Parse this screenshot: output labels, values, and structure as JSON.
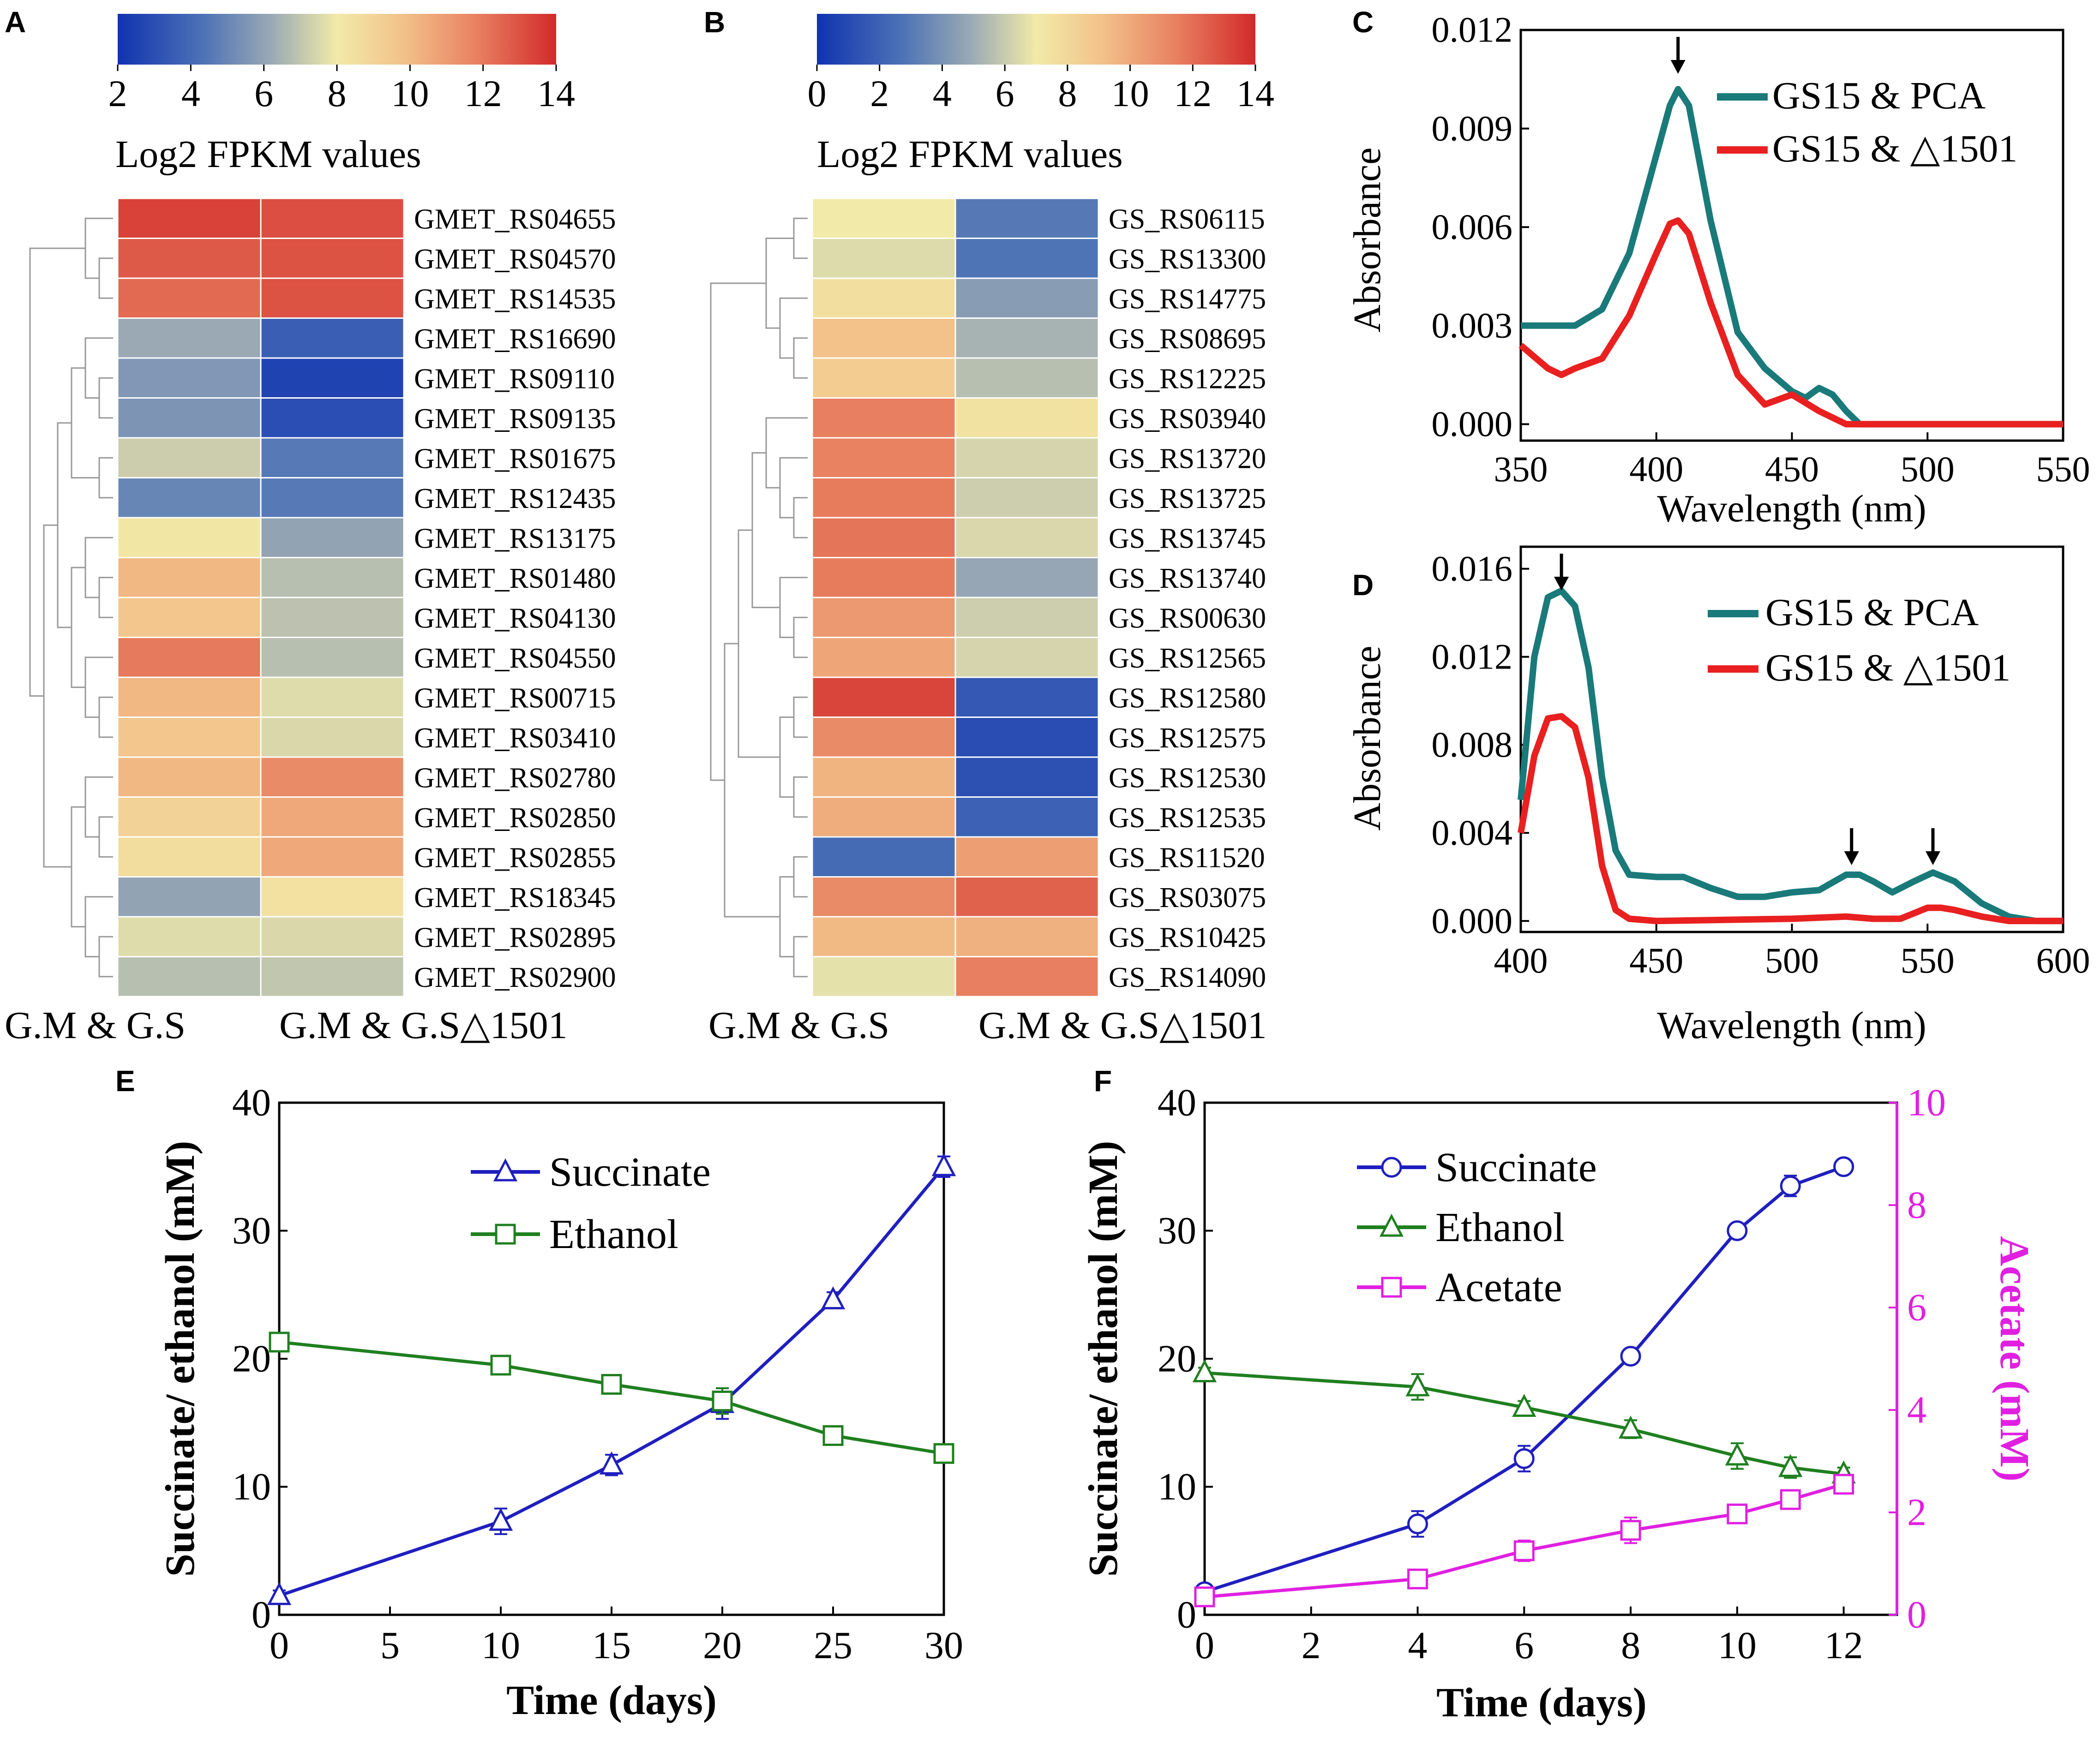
{
  "figure": {
    "panels": [
      "A",
      "B",
      "C",
      "D",
      "E",
      "F"
    ]
  },
  "chart_data": [
    {
      "panel": "A",
      "type": "heatmap",
      "colorbar": {
        "label": "Log2 FPKM values",
        "ticks": [
          2,
          4,
          6,
          8,
          10,
          12,
          14
        ],
        "range": [
          2,
          14
        ]
      },
      "columns": [
        "G.M & G.S",
        "G.M & G.S△1501"
      ],
      "rows": [
        "GMET_RS04655",
        "GMET_RS04570",
        "GMET_RS14535",
        "GMET_RS16690",
        "GMET_RS09110",
        "GMET_RS09135",
        "GMET_RS01675",
        "GMET_RS12435",
        "GMET_RS13175",
        "GMET_RS01480",
        "GMET_RS04130",
        "GMET_RS04550",
        "GMET_RS00715",
        "GMET_RS03410",
        "GMET_RS02780",
        "GMET_RS02850",
        "GMET_RS02855",
        "GMET_RS18345",
        "GMET_RS02895",
        "GMET_RS02900"
      ],
      "values": [
        [
          13.4,
          13.1
        ],
        [
          12.8,
          13.0
        ],
        [
          12.4,
          13.0
        ],
        [
          6.2,
          3.6
        ],
        [
          5.6,
          2.6
        ],
        [
          5.5,
          3.0
        ],
        [
          7.2,
          4.6
        ],
        [
          5.0,
          4.6
        ],
        [
          8.2,
          6.0
        ],
        [
          10.1,
          6.8
        ],
        [
          9.6,
          6.9
        ],
        [
          12.0,
          6.8
        ],
        [
          10.1,
          7.6
        ],
        [
          9.6,
          7.5
        ],
        [
          10.1,
          11.5
        ],
        [
          9.1,
          10.6
        ],
        [
          8.6,
          10.6
        ],
        [
          6.0,
          8.4
        ],
        [
          7.6,
          7.5
        ],
        [
          6.8,
          7.0
        ]
      ],
      "legend": {
        "position": "top"
      }
    },
    {
      "panel": "B",
      "type": "heatmap",
      "colorbar": {
        "label": "Log2 FPKM values",
        "ticks": [
          0,
          2,
          4,
          6,
          8,
          10,
          12,
          14
        ],
        "range": [
          0,
          14
        ]
      },
      "columns": [
        "G.M & G.S",
        "G.M & G.S△1501"
      ],
      "rows": [
        "GS_RS06115",
        "GS_RS13300",
        "GS_RS14775",
        "GS_RS08695",
        "GS_RS12225",
        "GS_RS03940",
        "GS_RS13720",
        "GS_RS13725",
        "GS_RS13745",
        "GS_RS13740",
        "GS_RS00630",
        "GS_RS12565",
        "GS_RS12580",
        "GS_RS12575",
        "GS_RS12530",
        "GS_RS12535",
        "GS_RS11520",
        "GS_RS03075",
        "GS_RS10425",
        "GS_RS14090"
      ],
      "values": [
        [
          7.0,
          3.0
        ],
        [
          6.5,
          2.8
        ],
        [
          7.6,
          4.4
        ],
        [
          9.1,
          5.2
        ],
        [
          8.6,
          5.6
        ],
        [
          11.5,
          7.4
        ],
        [
          11.4,
          6.3
        ],
        [
          11.6,
          6.1
        ],
        [
          11.8,
          6.4
        ],
        [
          11.6,
          4.8
        ],
        [
          10.6,
          6.1
        ],
        [
          10.1,
          6.3
        ],
        [
          13.2,
          1.6
        ],
        [
          11.1,
          1.1
        ],
        [
          9.6,
          1.3
        ],
        [
          9.9,
          2.0
        ],
        [
          2.4,
          10.4
        ],
        [
          11.1,
          12.4
        ],
        [
          9.4,
          9.7
        ],
        [
          6.7,
          11.5
        ]
      ],
      "legend": {
        "position": "top"
      }
    },
    {
      "panel": "C",
      "type": "line",
      "xlabel": "Wavelength (nm)",
      "ylabel": "Absorbance",
      "xlim": [
        350,
        550
      ],
      "ylim": [
        -0.0005,
        0.012
      ],
      "xticks": [
        350,
        400,
        450,
        500,
        550
      ],
      "yticks": [
        "0.000",
        "0.003",
        "0.006",
        "0.009",
        "0.012"
      ],
      "grid": false,
      "legend": {
        "position": "top-right"
      },
      "series": [
        {
          "name": "GS15 & PCA",
          "color": "#1a7a7a",
          "x": [
            350,
            360,
            370,
            380,
            390,
            400,
            405,
            408,
            412,
            420,
            430,
            440,
            450,
            455,
            460,
            465,
            470,
            475,
            500,
            550
          ],
          "y": [
            0.003,
            0.003,
            0.003,
            0.0035,
            0.0052,
            0.0082,
            0.0097,
            0.0102,
            0.0097,
            0.0062,
            0.0028,
            0.0017,
            0.001,
            0.0008,
            0.0011,
            0.0009,
            0.0004,
            0.0,
            0.0,
            0.0
          ]
        },
        {
          "name": "GS15 & △1501",
          "color": "#e82020",
          "x": [
            350,
            360,
            365,
            370,
            380,
            390,
            400,
            405,
            408,
            412,
            420,
            430,
            440,
            450,
            460,
            470,
            475,
            500,
            550
          ],
          "y": [
            0.0024,
            0.0017,
            0.0015,
            0.0017,
            0.002,
            0.0033,
            0.0052,
            0.0061,
            0.0062,
            0.0058,
            0.0037,
            0.0015,
            0.0006,
            0.0009,
            0.0004,
            0.0,
            0.0,
            0.0,
            0.0
          ]
        }
      ],
      "annotations": [
        {
          "type": "arrow",
          "x": 408
        }
      ]
    },
    {
      "panel": "D",
      "type": "line",
      "xlabel": "Wavelength (nm)",
      "ylabel": "Absorbance",
      "xlim": [
        400,
        600
      ],
      "ylim": [
        -0.0005,
        0.017
      ],
      "xticks": [
        400,
        450,
        500,
        550,
        600
      ],
      "yticks": [
        "0.000",
        "0.004",
        "0.008",
        "0.012",
        "0.016"
      ],
      "grid": false,
      "legend": {
        "position": "top-right"
      },
      "series": [
        {
          "name": "GS15 & PCA",
          "color": "#1a7a7a",
          "x": [
            400,
            405,
            410,
            415,
            420,
            425,
            430,
            435,
            440,
            450,
            460,
            470,
            480,
            490,
            500,
            510,
            520,
            525,
            530,
            537,
            545,
            552,
            560,
            570,
            580,
            590,
            600
          ],
          "y": [
            0.0055,
            0.012,
            0.0147,
            0.015,
            0.0143,
            0.0115,
            0.0065,
            0.0032,
            0.0021,
            0.002,
            0.002,
            0.0015,
            0.0011,
            0.0011,
            0.0013,
            0.0014,
            0.0021,
            0.0021,
            0.0018,
            0.0013,
            0.0018,
            0.0022,
            0.0018,
            0.0008,
            0.0002,
            0.0,
            0.0
          ]
        },
        {
          "name": "GS15 & △1501",
          "color": "#e82020",
          "x": [
            400,
            405,
            410,
            415,
            420,
            425,
            430,
            435,
            440,
            450,
            500,
            520,
            530,
            540,
            550,
            555,
            560,
            570,
            580,
            600
          ],
          "y": [
            0.004,
            0.0075,
            0.0092,
            0.0093,
            0.0088,
            0.0065,
            0.0025,
            0.0005,
            0.0001,
            0.0,
            0.0001,
            0.0002,
            0.0001,
            0.0001,
            0.0006,
            0.0006,
            0.0005,
            0.0002,
            0.0,
            0.0
          ]
        }
      ],
      "annotations": [
        {
          "type": "arrow",
          "x": 415
        },
        {
          "type": "arrow",
          "x": 522
        },
        {
          "type": "arrow",
          "x": 552
        }
      ]
    },
    {
      "panel": "E",
      "type": "line",
      "xlabel": "Time (days)",
      "ylabel": "Succinate/ ethanol (mM)",
      "xlim": [
        0,
        30
      ],
      "ylim": [
        0,
        40
      ],
      "xticks": [
        0,
        5,
        10,
        15,
        20,
        25,
        30
      ],
      "yticks": [
        0,
        10,
        20,
        30,
        40
      ],
      "grid": false,
      "legend": {
        "position": "top-center"
      },
      "series": [
        {
          "name": "Succinate",
          "color": "#1f1fbf",
          "marker": "triangle",
          "x": [
            0,
            10,
            15,
            20,
            25,
            30
          ],
          "y": [
            1.5,
            7.3,
            11.7,
            16.5,
            24.6,
            35.0
          ],
          "err": [
            0.4,
            1.0,
            0.8,
            1.2,
            0.6,
            0.8
          ]
        },
        {
          "name": "Ethanol",
          "color": "#1f7f1f",
          "marker": "square",
          "x": [
            0,
            10,
            15,
            20,
            25,
            30
          ],
          "y": [
            21.3,
            19.5,
            18.0,
            16.7,
            14.0,
            12.6
          ],
          "err": [
            0.3,
            0.6,
            0.6,
            1.0,
            0.3,
            0.7
          ]
        }
      ]
    },
    {
      "panel": "F",
      "type": "line",
      "xlabel": "Time (days)",
      "ylabel": "Succinate/ ethanol (mM)",
      "y2label": "Acetate (mM)",
      "xlim": [
        0,
        13
      ],
      "ylim": [
        0,
        40
      ],
      "y2lim": [
        0,
        10
      ],
      "xticks": [
        0,
        2,
        4,
        6,
        8,
        10,
        12
      ],
      "yticks": [
        0,
        10,
        20,
        30,
        40
      ],
      "y2ticks": [
        0,
        2,
        4,
        6,
        8,
        10
      ],
      "y2color": "#e020e0",
      "grid": false,
      "legend": {
        "position": "top-center"
      },
      "series": [
        {
          "name": "Succinate",
          "color": "#1f1fbf",
          "marker": "circle",
          "axis": "left",
          "x": [
            0,
            4,
            6,
            8,
            10,
            11,
            12
          ],
          "y": [
            1.8,
            7.1,
            12.2,
            20.2,
            30.0,
            33.5,
            35.0
          ],
          "err": [
            0.3,
            1.0,
            1.0,
            0.3,
            0.3,
            0.8,
            0.3
          ]
        },
        {
          "name": "Ethanol",
          "color": "#1f7f1f",
          "marker": "triangle",
          "axis": "left",
          "x": [
            0,
            4,
            6,
            8,
            10,
            11,
            12
          ],
          "y": [
            18.9,
            17.8,
            16.2,
            14.5,
            12.4,
            11.5,
            11.0
          ],
          "err": [
            0.4,
            1.0,
            0.5,
            0.7,
            1.0,
            0.8,
            0.5
          ]
        },
        {
          "name": "Acetate",
          "color": "#e020e0",
          "marker": "square",
          "axis": "right",
          "x": [
            0,
            4,
            6,
            8,
            10,
            11,
            12
          ],
          "y": [
            0.35,
            0.7,
            1.25,
            1.65,
            1.97,
            2.25,
            2.55
          ],
          "err": [
            0.1,
            0.1,
            0.2,
            0.25,
            0.1,
            0.1,
            0.15
          ]
        }
      ]
    }
  ]
}
